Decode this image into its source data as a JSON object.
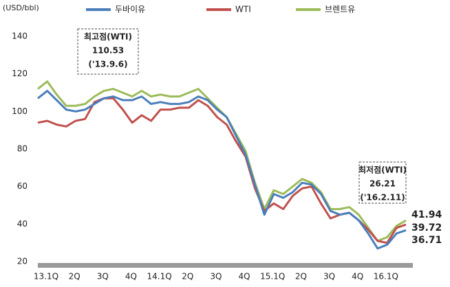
{
  "chart_data": {
    "type": "line",
    "y_label": "(USD/bbl)",
    "categories": [
      "13.1Q",
      null,
      null,
      "2Q",
      null,
      null,
      "3Q",
      null,
      null,
      "4Q",
      null,
      null,
      "14.1Q",
      null,
      null,
      "2Q",
      null,
      null,
      "3Q",
      null,
      null,
      "4Q",
      null,
      null,
      "15.1Q",
      null,
      null,
      "2Q",
      null,
      null,
      "3Q",
      null,
      null,
      "4Q",
      null,
      null,
      "16.1Q",
      null,
      null,
      null
    ],
    "series": [
      {
        "name": "두바이유",
        "color": "#4a7ebb",
        "label_color": "#2e63a8",
        "values": [
          107,
          111,
          106,
          101,
          100,
          101,
          104,
          107,
          108,
          106,
          106,
          108,
          104,
          105,
          104,
          104,
          105,
          108,
          106,
          101,
          97,
          87,
          77,
          61,
          45,
          56,
          54,
          57,
          62,
          61,
          56,
          47,
          45,
          46,
          42,
          35,
          27,
          29,
          35,
          36.71
        ]
      },
      {
        "name": "WTI",
        "color": "#c0504d",
        "label_color": "#c0393b",
        "values": [
          94,
          95,
          93,
          92,
          95,
          96,
          105,
          107,
          107,
          101,
          94,
          98,
          95,
          101,
          101,
          102,
          102,
          106,
          103,
          97,
          93,
          84,
          76,
          59,
          47,
          51,
          48,
          55,
          59,
          60,
          51,
          43,
          45,
          46,
          42,
          37,
          31,
          30,
          38,
          39.72
        ]
      },
      {
        "name": "브렌트유",
        "color": "#9bbb59",
        "label_color": "#6e8f33",
        "values": [
          112,
          116,
          109,
          103,
          103,
          104,
          108,
          111,
          112,
          110,
          108,
          111,
          108,
          109,
          108,
          108,
          110,
          112,
          107,
          102,
          97,
          88,
          79,
          62,
          48,
          58,
          56,
          60,
          64,
          62,
          57,
          48,
          48,
          49,
          45,
          38,
          31,
          33,
          39,
          41.94
        ]
      }
    ],
    "annotations": [
      {
        "label": "최고점(WTI)",
        "value": 110.53,
        "date": "('13.9.6)"
      },
      {
        "label": "최저점(WTI)",
        "value": 26.21,
        "date": "('16.2.11)"
      }
    ],
    "ylim": [
      20,
      140
    ],
    "yticks": [
      20,
      40,
      60,
      80,
      100,
      120,
      140
    ],
    "grid": false
  }
}
